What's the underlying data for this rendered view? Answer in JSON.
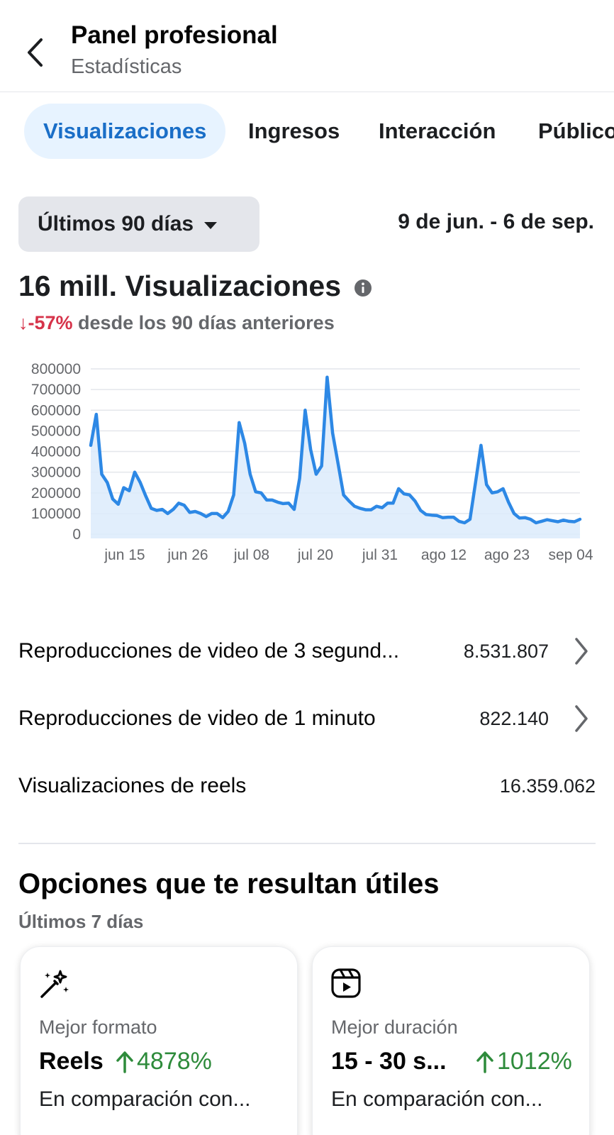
{
  "header": {
    "title": "Panel profesional",
    "subtitle": "Estadísticas"
  },
  "tabs": [
    {
      "label": "Visualizaciones",
      "active": true
    },
    {
      "label": "Ingresos",
      "active": false
    },
    {
      "label": "Interacción",
      "active": false
    },
    {
      "label": "Público",
      "active": false
    }
  ],
  "filter": {
    "range_label": "Últimos 90 días",
    "date_range": "9 de jun. - 6 de sep."
  },
  "metric": {
    "title": "16 mill. Visualizaciones",
    "change": "↓-57%",
    "change_text": "desde los 90 días anteriores"
  },
  "colors": {
    "accent": "#1a6ec7",
    "line": "#2d88e5",
    "fill": "#dcebfb",
    "negative": "#d6334a",
    "positive": "#2e8b3b"
  },
  "chart_data": {
    "type": "area",
    "yticks": [
      "800000",
      "700000",
      "600000",
      "500000",
      "400000",
      "300000",
      "200000",
      "100000",
      "0"
    ],
    "xticks": [
      "jun 15",
      "jun 26",
      "jul 08",
      "jul 20",
      "jul 31",
      "ago 12",
      "ago 23",
      "sep 04"
    ],
    "ylim": [
      0,
      800000
    ],
    "grid": true,
    "values": [
      430000,
      580000,
      290000,
      250000,
      170000,
      145000,
      225000,
      210000,
      300000,
      250000,
      185000,
      125000,
      115000,
      120000,
      100000,
      120000,
      150000,
      140000,
      105000,
      110000,
      100000,
      85000,
      100000,
      100000,
      80000,
      110000,
      190000,
      540000,
      440000,
      290000,
      205000,
      200000,
      165000,
      165000,
      155000,
      148000,
      150000,
      120000,
      270000,
      600000,
      410000,
      290000,
      330000,
      760000,
      490000,
      340000,
      190000,
      160000,
      135000,
      125000,
      118000,
      118000,
      135000,
      128000,
      150000,
      150000,
      220000,
      195000,
      190000,
      160000,
      115000,
      95000,
      92000,
      90000,
      80000,
      82000,
      82000,
      62000,
      55000,
      72000,
      250000,
      430000,
      240000,
      200000,
      205000,
      220000,
      155000,
      100000,
      78000,
      80000,
      72000,
      55000,
      62000,
      70000,
      65000,
      60000,
      68000,
      62000,
      60000,
      72000
    ]
  },
  "stats": [
    {
      "label": "Reproducciones de video de 3 segund...",
      "value": "8.531.807",
      "has_chevron": true
    },
    {
      "label": "Reproducciones de video de 1 minuto",
      "value": "822.140",
      "has_chevron": true
    },
    {
      "label": "Visualizaciones de reels",
      "value": "16.359.062",
      "has_chevron": false
    }
  ],
  "options": {
    "title": "Opciones que te resultan útiles",
    "subtitle": "Últimos 7 días",
    "cards": [
      {
        "icon": "magic-wand-icon",
        "label": "Mejor formato",
        "value": "Reels",
        "pct": "4878%",
        "desc": "En comparación con..."
      },
      {
        "icon": "reels-icon",
        "label": "Mejor duración",
        "value": "15 - 30 s...",
        "pct": "1012%",
        "desc": "En comparación con..."
      }
    ]
  }
}
